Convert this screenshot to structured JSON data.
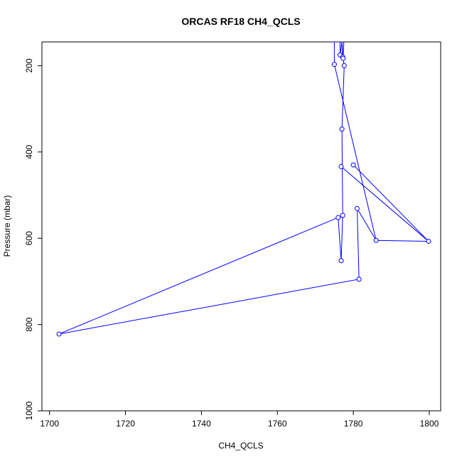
{
  "chart_data": {
    "type": "line",
    "title": "ORCAS RF18 CH4_QCLS",
    "xlabel": "CH4_QCLS",
    "ylabel": "Pressure (mbar)",
    "xlim": [
      1698,
      1803
    ],
    "ylim": [
      1000,
      145
    ],
    "y_reversed": true,
    "x_ticks": [
      1700,
      1720,
      1740,
      1760,
      1780,
      1800
    ],
    "y_ticks": [
      200,
      400,
      600,
      800,
      1000
    ],
    "series_color": "#0000ff",
    "points": [
      {
        "x": 1702.5,
        "y": 822
      },
      {
        "x": 1781.5,
        "y": 695
      },
      {
        "x": 1781.0,
        "y": 531
      },
      {
        "x": 1786.0,
        "y": 605
      },
      {
        "x": 1775.0,
        "y": 197
      },
      {
        "x": 1775.0,
        "y": 145
      },
      {
        "x": 1776.5,
        "y": 145
      },
      {
        "x": 1776.5,
        "y": 175
      },
      {
        "x": 1777.0,
        "y": 145
      },
      {
        "x": 1777.2,
        "y": 180
      },
      {
        "x": 1777.5,
        "y": 145
      },
      {
        "x": 1777.3,
        "y": 183
      },
      {
        "x": 1777.6,
        "y": 200
      },
      {
        "x": 1777.0,
        "y": 347
      },
      {
        "x": 1777.2,
        "y": 547
      },
      {
        "x": 1776.8,
        "y": 652
      },
      {
        "x": 1776.0,
        "y": 552
      },
      {
        "x": 1702.5,
        "y": 822
      }
    ],
    "extra_segments": [
      {
        "from": {
          "x": 1780.0,
          "y": 430
        },
        "to": {
          "x": 1799.8,
          "y": 607
        }
      },
      {
        "from": {
          "x": 1799.8,
          "y": 607
        },
        "to": {
          "x": 1786.0,
          "y": 605
        }
      },
      {
        "from": {
          "x": 1776.8,
          "y": 434
        },
        "to": {
          "x": 1799.8,
          "y": 607
        }
      }
    ],
    "isolated_points": [
      {
        "x": 1780.0,
        "y": 430
      }
    ]
  }
}
